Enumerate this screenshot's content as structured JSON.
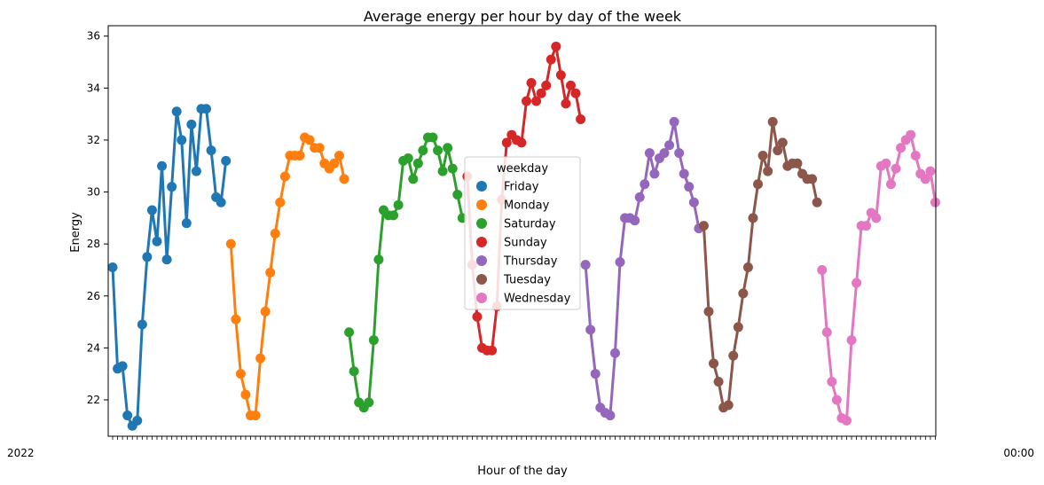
{
  "chart_data": {
    "type": "line",
    "title": "Average energy per hour by day of the week",
    "xlabel": "Hour of the day",
    "ylabel": "Energy",
    "ylim": [
      20.6,
      36.4
    ],
    "yticks": [
      22,
      24,
      26,
      28,
      30,
      32,
      34,
      36
    ],
    "grid": false,
    "legend": {
      "title": "weekday",
      "placement": "center"
    },
    "x_tick_note": "overlapping unreadable datetime tick labels",
    "x_tick_left": "2022",
    "x_tick_right": "00:00",
    "series": [
      {
        "name": "Friday",
        "color": "#1f77b4",
        "values": [
          27.1,
          23.2,
          23.3,
          21.4,
          21.0,
          21.2,
          24.9,
          27.5,
          29.3,
          28.1,
          31.0,
          27.4,
          30.2,
          33.1,
          32.0,
          28.8,
          32.6,
          30.8,
          33.2,
          33.2,
          31.6,
          29.8,
          29.6,
          31.2
        ]
      },
      {
        "name": "Monday",
        "color": "#ff7f0e",
        "values": [
          28.0,
          25.1,
          23.0,
          22.2,
          21.4,
          21.4,
          23.6,
          25.4,
          26.9,
          28.4,
          29.6,
          30.6,
          31.4,
          31.4,
          31.4,
          32.1,
          32.0,
          31.7,
          31.7,
          31.1,
          30.9,
          31.1,
          31.4,
          30.5
        ]
      },
      {
        "name": "Saturday",
        "color": "#2ca02c",
        "values": [
          24.6,
          23.1,
          21.9,
          21.7,
          21.9,
          24.3,
          27.4,
          29.3,
          29.1,
          29.1,
          29.5,
          31.2,
          31.3,
          30.5,
          31.1,
          31.6,
          32.1,
          32.1,
          31.6,
          30.8,
          31.7,
          30.9,
          29.9,
          29.0
        ]
      },
      {
        "name": "Sunday",
        "color": "#d62728",
        "values": [
          30.6,
          27.2,
          25.2,
          24.0,
          23.9,
          23.9,
          25.6,
          29.7,
          31.9,
          32.2,
          32.0,
          31.9,
          33.5,
          34.2,
          33.5,
          33.8,
          34.1,
          35.1,
          35.6,
          34.5,
          33.4,
          34.1,
          33.8,
          32.8
        ]
      },
      {
        "name": "Thursday",
        "color": "#9467bd",
        "values": [
          27.2,
          24.7,
          23.0,
          21.7,
          21.5,
          21.4,
          23.8,
          27.3,
          29.0,
          29.0,
          28.9,
          29.8,
          30.3,
          31.5,
          30.7,
          31.3,
          31.5,
          31.8,
          32.7,
          31.5,
          30.7,
          30.2,
          29.6,
          28.6
        ]
      },
      {
        "name": "Tuesday",
        "color": "#8c564b",
        "values": [
          28.7,
          25.4,
          23.4,
          22.7,
          21.7,
          21.8,
          23.7,
          24.8,
          26.1,
          27.1,
          29.0,
          30.3,
          31.4,
          30.8,
          32.7,
          31.6,
          31.9,
          31.0,
          31.1,
          31.1,
          30.7,
          30.5,
          30.5,
          29.6
        ]
      },
      {
        "name": "Wednesday",
        "color": "#e377c2",
        "values": [
          27.0,
          24.6,
          22.7,
          22.0,
          21.3,
          21.2,
          24.3,
          26.5,
          28.7,
          28.7,
          29.2,
          29.0,
          31.0,
          31.1,
          30.3,
          30.9,
          31.7,
          32.0,
          32.2,
          31.4,
          30.7,
          30.5,
          30.8,
          29.6
        ]
      }
    ]
  }
}
